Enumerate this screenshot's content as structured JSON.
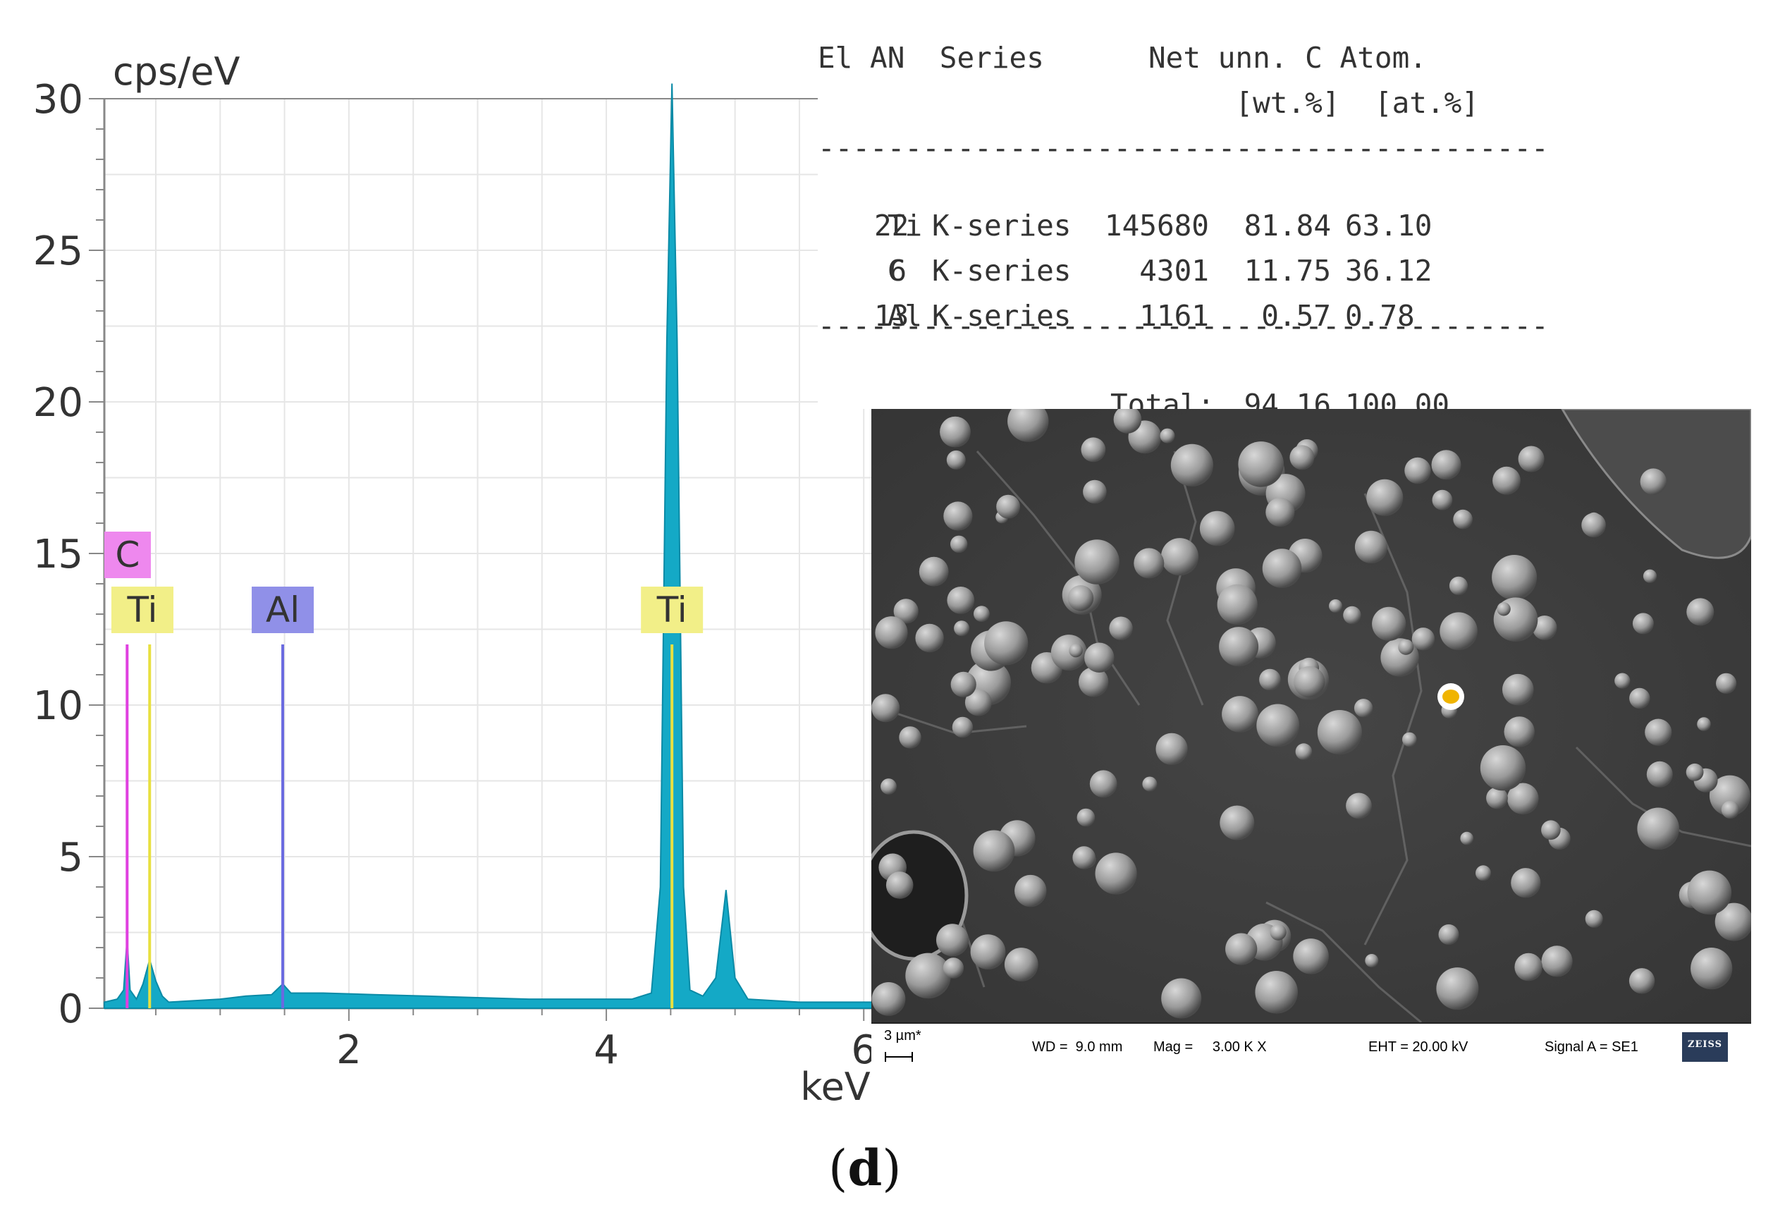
{
  "chart_data": {
    "type": "line",
    "ylabel": "cps/eV",
    "xlabel": "keV",
    "ylim": [
      0,
      30
    ],
    "xlim": [
      0.1,
      6.3
    ],
    "yticks": [
      "0",
      "5",
      "10",
      "15",
      "20",
      "25",
      "30"
    ],
    "xticks": [
      "2",
      "4",
      "6"
    ],
    "grid": true,
    "series": [
      {
        "points": [
          [
            0.1,
            0.2
          ],
          [
            0.2,
            0.3
          ],
          [
            0.25,
            0.6
          ],
          [
            0.277,
            2.3
          ],
          [
            0.3,
            0.6
          ],
          [
            0.35,
            0.3
          ],
          [
            0.4,
            0.8
          ],
          [
            0.452,
            1.6
          ],
          [
            0.5,
            0.9
          ],
          [
            0.55,
            0.4
          ],
          [
            0.6,
            0.2
          ],
          [
            0.8,
            0.25
          ],
          [
            1.0,
            0.3
          ],
          [
            1.2,
            0.4
          ],
          [
            1.4,
            0.45
          ],
          [
            1.486,
            0.8
          ],
          [
            1.55,
            0.5
          ],
          [
            1.8,
            0.5
          ],
          [
            2.2,
            0.45
          ],
          [
            2.6,
            0.4
          ],
          [
            3.0,
            0.35
          ],
          [
            3.4,
            0.3
          ],
          [
            3.8,
            0.3
          ],
          [
            4.2,
            0.3
          ],
          [
            4.35,
            0.5
          ],
          [
            4.42,
            4.0
          ],
          [
            4.47,
            22.0
          ],
          [
            4.51,
            30.5
          ],
          [
            4.55,
            22.0
          ],
          [
            4.6,
            4.0
          ],
          [
            4.65,
            0.6
          ],
          [
            4.75,
            0.4
          ],
          [
            4.85,
            1.0
          ],
          [
            4.93,
            3.9
          ],
          [
            5.0,
            1.0
          ],
          [
            5.1,
            0.3
          ],
          [
            5.5,
            0.2
          ],
          [
            6.0,
            0.2
          ],
          [
            6.3,
            0.2
          ]
        ]
      }
    ],
    "markers": [
      {
        "label": "C",
        "x": 0.277,
        "height": 12.0,
        "color": "#e040e0",
        "box_color": "#ee88ee"
      },
      {
        "label": "Ti",
        "x": 0.452,
        "height": 12.0,
        "color": "#e8e040",
        "box_color": "#f2ef88"
      },
      {
        "label": "Al",
        "x": 1.486,
        "height": 12.0,
        "color": "#6a6ae0",
        "box_color": "#9090e8"
      },
      {
        "label": "Ti",
        "x": 4.51,
        "height": 12.0,
        "color": "#e8e040",
        "box_color": "#f2ef88"
      }
    ],
    "colors": {
      "spectrum": "#14a9c6",
      "spectrum_edge": "#0a8aa6",
      "grid": "#e6e6e6",
      "axis": "#888888"
    }
  },
  "quant_table": {
    "header1": "El AN  Series      Net unn. C Atom.",
    "header2": "                        [wt.%]  [at.%]",
    "separator": "------------------------------------------",
    "rows": [
      {
        "el": "Ti",
        "an": "22",
        "series": "K-series",
        "net": "145680",
        "wt": "81.84",
        "at": "63.10"
      },
      {
        "el": "C",
        "an": "6",
        "series": "K-series",
        "net": "4301",
        "wt": "11.75",
        "at": "36.12"
      },
      {
        "el": "Al",
        "an": "13",
        "series": "K-series",
        "net": "1161",
        "wt": "0.57",
        "at": "0.78"
      }
    ],
    "total_label": "Total:",
    "total_wt": "94.16",
    "total_at": "100.00"
  },
  "sem_image": {
    "scale_bar": "3 µm*",
    "wd": "WD =  9.0 mm",
    "mag": "Mag =     3.00 K X",
    "eht": "EHT = 20.00 kV",
    "signal": "Signal A = SE1",
    "logo": "ZEISS",
    "marker_color": "#f0b400"
  },
  "panel_label": "d"
}
